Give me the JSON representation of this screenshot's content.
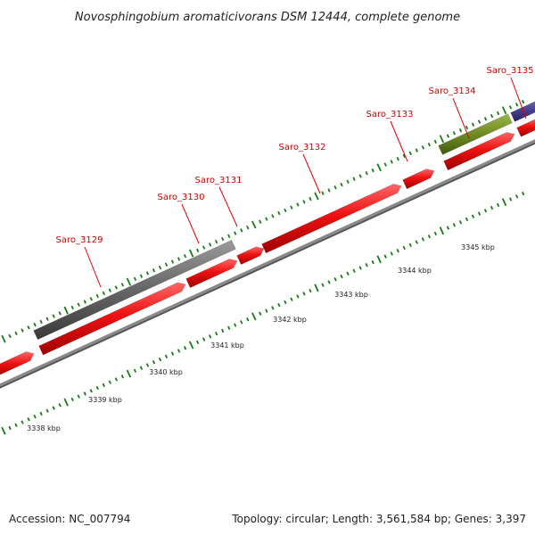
{
  "title": "Novosphingobium aromaticivorans DSM 12444, complete genome",
  "footer": {
    "accession": "Accession: NC_007794",
    "summary": "Topology: circular; Length: 3,561,584 bp; Genes: 3,397"
  },
  "colors": {
    "gene_label": "#cc0000",
    "leader_line": "#dd0000",
    "tick": "#1a7a1a",
    "backbone": "#8a8a8a",
    "cds": "#ee1111",
    "gene_gray": "#666666",
    "gene_olive": "#6f8a22",
    "gene_purple": "#4a4090"
  },
  "genes": [
    {
      "label": "Saro_3129"
    },
    {
      "label": "Saro_3130"
    },
    {
      "label": "Saro_3131"
    },
    {
      "label": "Saro_3132"
    },
    {
      "label": "Saro_3133"
    },
    {
      "label": "Saro_3134"
    },
    {
      "label": "Saro_3135"
    }
  ],
  "scale": [
    {
      "label": "3338 kbp"
    },
    {
      "label": "3339 kbp"
    },
    {
      "label": "3340 kbp"
    },
    {
      "label": "3341 kbp"
    },
    {
      "label": "3342 kbp"
    },
    {
      "label": "3343 kbp"
    },
    {
      "label": "3344 kbp"
    },
    {
      "label": "3345 kbp"
    }
  ]
}
